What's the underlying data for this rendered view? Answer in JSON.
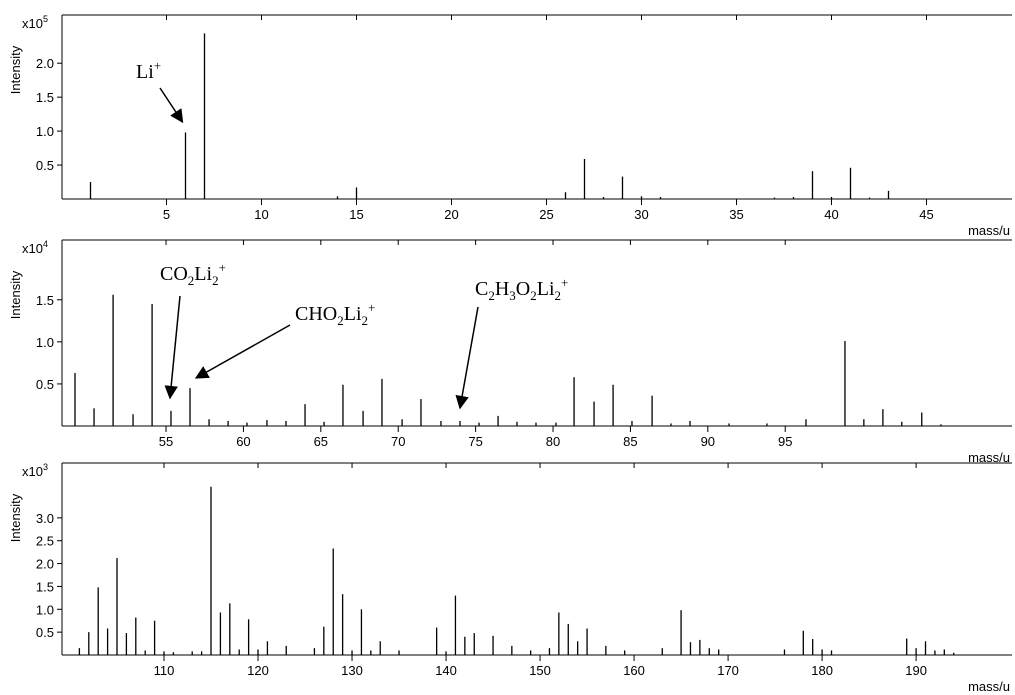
{
  "chart_data": [
    {
      "type": "stem",
      "ylabel": "Intensity",
      "xlabel": "mass/u",
      "y_multiplier": {
        "base": "x10",
        "exponent": "5"
      },
      "color": "#000000",
      "x": [
        1,
        6,
        7,
        14,
        15,
        26,
        27,
        28,
        29,
        30,
        31,
        37,
        38,
        39,
        40,
        41,
        42,
        43
      ],
      "values": [
        0.25,
        0.98,
        2.44,
        0.04,
        0.17,
        0.1,
        0.59,
        0.03,
        0.33,
        0.04,
        0.03,
        0.02,
        0.03,
        0.41,
        0.03,
        0.46,
        0.02,
        0.12
      ],
      "xlim": [
        -0.5,
        49.5
      ],
      "ylim": [
        0,
        2.71
      ],
      "xticks": [
        5,
        10,
        15,
        20,
        25,
        30,
        35,
        40,
        45
      ],
      "yticks": [
        0.5,
        {
          "value": 1,
          "label": "1.0"
        },
        1.5,
        {
          "value": 2,
          "label": "2.0"
        }
      ],
      "annotations": [
        {
          "parts": [
            {
              "text": "Li"
            },
            {
              "text": "+",
              "pos": "sup"
            }
          ],
          "x": 6
        }
      ]
    },
    {
      "type": "stem",
      "ylabel": "Intensity",
      "xlabel": "mass/u",
      "y_multiplier": {
        "base": "x10",
        "exponent": "4"
      },
      "color": "#000000",
      "x": [
        49.12,
        50.35,
        51.58,
        52.87,
        54.1,
        55.32,
        56.55,
        57.78,
        59.01,
        60.23,
        61.52,
        62.75,
        63.98,
        65.21,
        66.43,
        67.73,
        68.95,
        70.25,
        71.47,
        72.76,
        73.99,
        75.22,
        76.45,
        77.67,
        78.9,
        80.19,
        81.36,
        82.65,
        83.88,
        85.1,
        86.4,
        87.62,
        88.85,
        91.37,
        93.82,
        96.34,
        98.86,
        100.08,
        101.31,
        102.53,
        103.82,
        105.06
      ],
      "values": [
        0.63,
        0.21,
        1.56,
        0.14,
        1.45,
        0.18,
        0.45,
        0.08,
        0.06,
        0.04,
        0.07,
        0.06,
        0.26,
        0.05,
        0.49,
        0.18,
        0.56,
        0.08,
        0.32,
        0.06,
        0.06,
        0.04,
        0.12,
        0.05,
        0.04,
        0.04,
        0.58,
        0.29,
        0.49,
        0.06,
        0.36,
        0.03,
        0.06,
        0.03,
        0.03,
        0.08,
        1.01,
        0.08,
        0.2,
        0.05,
        0.16,
        0.02
      ],
      "xlim": [
        48.28,
        109.65
      ],
      "ylim": [
        0,
        2.21
      ],
      "xticks": [
        55,
        60,
        65,
        70,
        75,
        80,
        85,
        90,
        95
      ],
      "yticks": [
        0.5,
        {
          "value": 1,
          "label": "1.0"
        },
        1.5
      ],
      "annotations": [
        {
          "parts": [
            {
              "text": "CO"
            },
            {
              "text": "2",
              "pos": "sub"
            },
            {
              "text": "Li"
            },
            {
              "text": "2",
              "pos": "sub"
            },
            {
              "text": "+",
              "pos": "sup"
            }
          ],
          "x": 55.32
        },
        {
          "parts": [
            {
              "text": "CHO"
            },
            {
              "text": "2",
              "pos": "sub"
            },
            {
              "text": "Li"
            },
            {
              "text": "2",
              "pos": "sub"
            },
            {
              "text": "+",
              "pos": "sup"
            }
          ],
          "x": 56.55
        },
        {
          "parts": [
            {
              "text": "C"
            },
            {
              "text": "2",
              "pos": "sub"
            },
            {
              "text": "H"
            },
            {
              "text": "3",
              "pos": "sub"
            },
            {
              "text": "O"
            },
            {
              "text": "2",
              "pos": "sub"
            },
            {
              "text": "Li"
            },
            {
              "text": "2",
              "pos": "sub"
            },
            {
              "text": "+",
              "pos": "sup"
            }
          ],
          "x": 73.99
        }
      ]
    },
    {
      "type": "stem",
      "ylabel": "Intensity",
      "xlabel": "mass/u",
      "y_multiplier": {
        "base": "x10",
        "exponent": "3"
      },
      "color": "#000000",
      "x": [
        101,
        102,
        103,
        104,
        105,
        106,
        107,
        108,
        109,
        110,
        111,
        113,
        114,
        115,
        116,
        117,
        118,
        119,
        120,
        121,
        123,
        126,
        127,
        128,
        129,
        130,
        131,
        132,
        133,
        135,
        139,
        140,
        141,
        142,
        143,
        145,
        147,
        149,
        151,
        152,
        153,
        154,
        155,
        157,
        159,
        163,
        165,
        166,
        167,
        168,
        169,
        176,
        178,
        179,
        180,
        181,
        189,
        190,
        191,
        192,
        193,
        194
      ],
      "values": [
        0.15,
        0.5,
        1.48,
        0.58,
        2.12,
        0.48,
        0.82,
        0.1,
        0.75,
        0.08,
        0.06,
        0.08,
        0.08,
        3.68,
        0.93,
        1.13,
        0.12,
        0.78,
        0.12,
        0.3,
        0.2,
        0.15,
        0.62,
        2.33,
        1.33,
        0.1,
        1,
        0.1,
        0.3,
        0.1,
        0.6,
        0.08,
        1.3,
        0.4,
        0.48,
        0.42,
        0.2,
        0.1,
        0.15,
        0.93,
        0.68,
        0.3,
        0.58,
        0.2,
        0.1,
        0.15,
        0.98,
        0.28,
        0.33,
        0.15,
        0.12,
        0.12,
        0.53,
        0.35,
        0.12,
        0.1,
        0.36,
        0.15,
        0.3,
        0.1,
        0.12,
        0.05
      ],
      "xlim": [
        99.15,
        200.2
      ],
      "ylim": [
        0,
        4.2
      ],
      "xticks": [
        110,
        120,
        130,
        140,
        150,
        160,
        170,
        180,
        190
      ],
      "yticks": [
        0.5,
        {
          "value": 1,
          "label": "1.0"
        },
        1.5,
        {
          "value": 2,
          "label": "2.0"
        },
        2.5,
        {
          "value": 3,
          "label": "3.0"
        }
      ],
      "annotations": []
    }
  ]
}
